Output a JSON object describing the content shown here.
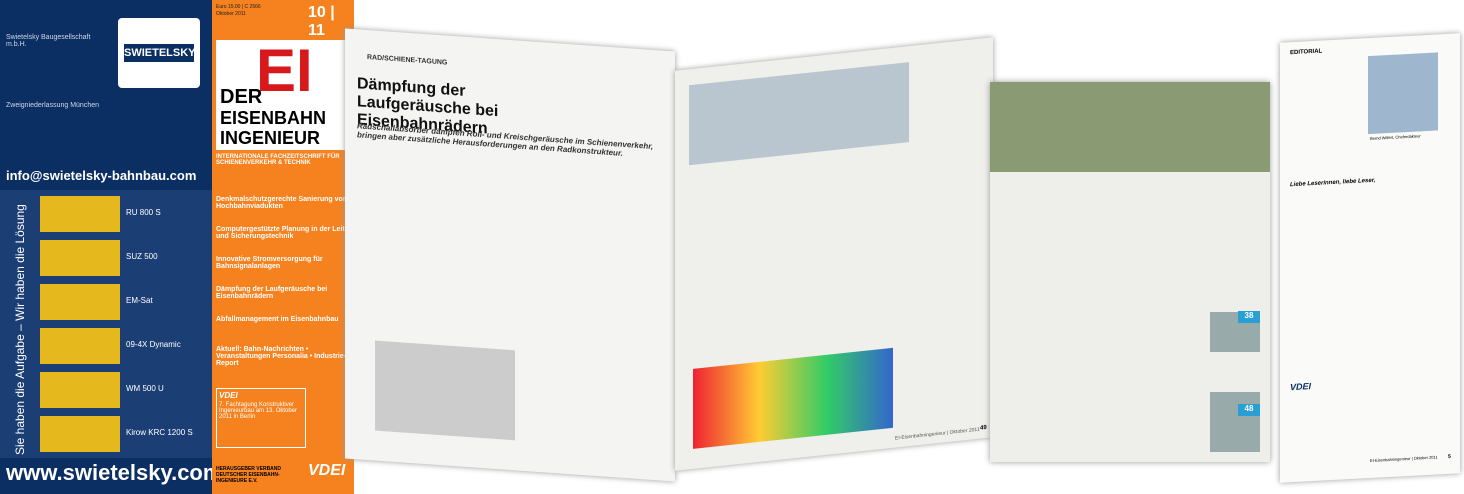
{
  "ad": {
    "company": "SWIETELSKY",
    "address1": "Swietelsky Baugesellschaft m.b.H.",
    "address2": "Zweigniederlassung München",
    "email": "info@swietelsky-bahnbau.com",
    "slogan": "Sie haben die Aufgabe – Wir haben die Lösung",
    "machines": [
      "RU 800 S",
      "SUZ 500",
      "EM-Sat",
      "09-4X Dynamic",
      "WM 500 U",
      "Kirow KRC 1200 S"
    ],
    "website": "www.swietelsky.com"
  },
  "cover": {
    "price": "Euro 15.00 | C 2566",
    "date": "Oktober 2011",
    "issue": "10 | 11",
    "logo_der": "DER",
    "logo_ei": "EI",
    "logo_eisenbahn": "EISENBAHN",
    "logo_ingenieur": "INGENIEUR",
    "tagline": "INTERNATIONALE FACHZEITSCHRIFT FÜR SCHIENENVERKEHR & TECHNIK",
    "topics": [
      "Denkmalschutzgerechte Sanierung von Hochbahnviadukten",
      "Computergestützte Planung in der Leit- und Sicherungstechnik",
      "Innovative Stromversorgung für Bahnsignalanlagen",
      "Dämpfung der Laufgeräusche bei Eisenbahnrädern",
      "Abfallmanagement im Eisenbahnbau",
      "Aktuell: Bahn-Nachrichten • Veranstaltungen Personalia • Industrie-Report"
    ],
    "event_org": "VDEI",
    "event": "7. Fachtagung Konstruktiver Ingenieurbau am 13. Oktober 2011 in Berlin",
    "publisher": "HERAUSGEBER VERBAND DEUTSCHER EISENBAHN-INGENIEURE E.V.",
    "publisher_logo": "VDEI"
  },
  "article": {
    "section": "RAD/SCHIENE-TAGUNG",
    "title": "Dämpfung der Laufgeräusche bei Eisenbahnrädern",
    "subtitle": "Radschallabsorber dämpfen Roll- und Kreischgeräusche im Schienenverkehr, bringen aber zusätzliche Herausforderungen an den Radkonstrukteur.",
    "footer": "EI-Eisenbahningenieur | Oktober 2011",
    "page": "49"
  },
  "editorial": {
    "label": "EDITORIAL",
    "caption": "Bernd Wilfert, Chefredakteur",
    "greeting": "Liebe Leserinnen, liebe Leser,",
    "badges": [
      "38",
      "48"
    ],
    "logo": "VDEI",
    "footer": "EI-Eisenbahningenieur | Oktober 2011",
    "page": "5"
  }
}
